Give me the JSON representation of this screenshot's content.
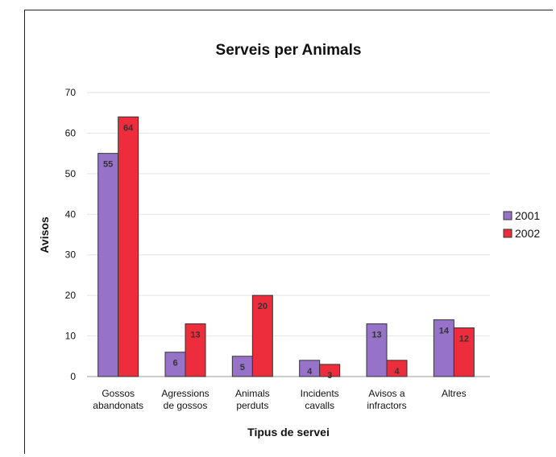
{
  "chart_data": {
    "type": "bar",
    "title": "Serveis per Animals",
    "xlabel": "Tipus de servei",
    "ylabel": "Avisos",
    "ylim": [
      0,
      70
    ],
    "yticks": [
      0,
      10,
      20,
      30,
      40,
      50,
      60,
      70
    ],
    "grid": true,
    "legend_position": "right",
    "categories": [
      [
        "Gossos",
        "abandonats"
      ],
      [
        "Agressions",
        "de gossos"
      ],
      [
        "Animals",
        "perduts"
      ],
      [
        "Incidents",
        "cavalls"
      ],
      [
        "Avisos a",
        "infractors"
      ],
      [
        "Altres"
      ]
    ],
    "series": [
      {
        "name": "2001",
        "color": "#9673c8",
        "values": [
          55,
          6,
          5,
          4,
          13,
          14
        ]
      },
      {
        "name": "2002",
        "color": "#ee2d3c",
        "values": [
          64,
          13,
          20,
          3,
          4,
          12
        ]
      }
    ]
  }
}
